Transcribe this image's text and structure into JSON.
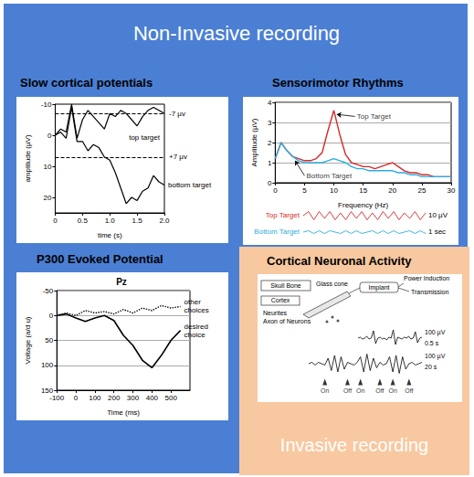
{
  "header": {
    "title": "Non-Invasive recording"
  },
  "footer": {
    "title": "Invasive recording"
  },
  "chart_data": [
    {
      "type": "line",
      "title": "Slow cortical potentials",
      "x_label": "time (s)",
      "y_label": "amplitude (µV)",
      "x": [
        0,
        0.1,
        0.2,
        0.3,
        0.4,
        0.5,
        0.6,
        0.7,
        0.8,
        0.9,
        1,
        1.1,
        1.2,
        1.3,
        1.4,
        1.5,
        1.6,
        1.7,
        1.8,
        1.9,
        2
      ],
      "series": [
        {
          "name": "top target",
          "color": "#000000",
          "line_style": "solid",
          "values": [
            0,
            -2,
            -1,
            -10,
            1,
            -5,
            -8,
            -6,
            -4,
            -2,
            -7,
            -6,
            -8,
            -7,
            -5,
            -3,
            -6,
            -8,
            -9,
            -8,
            -7
          ]
        },
        {
          "name": "bottom target",
          "color": "#000000",
          "line_style": "solid",
          "values": [
            0,
            -1,
            1,
            -9,
            2,
            2,
            5,
            3,
            4,
            7,
            8,
            12,
            17,
            22,
            20,
            21,
            18,
            17,
            13,
            15,
            16
          ]
        }
      ],
      "thresholds": [
        {
          "value": -7,
          "label": "-7 µv"
        },
        {
          "value": 7,
          "label": "+7 µv"
        }
      ],
      "xlim": [
        0,
        2
      ],
      "xticks": [
        0,
        0.5,
        {
          "value": 1,
          "label": "1.0"
        },
        1.5,
        {
          "value": 2,
          "label": "2.0"
        }
      ],
      "ylim": [
        25,
        -10
      ],
      "yticks": [
        -10,
        0,
        10,
        20
      ],
      "grid": false
    },
    {
      "type": "line",
      "title": "Sensorimotor Rhythms",
      "x_label": "Frequency (Hz)",
      "y_label": "Amplitude (µV)",
      "x": [
        0,
        1,
        2,
        3,
        4,
        5,
        6,
        7,
        8,
        9,
        10,
        11,
        12,
        13,
        14,
        15,
        16,
        17,
        18,
        19,
        20,
        21,
        22,
        23,
        24,
        25,
        26,
        27,
        28,
        29,
        30
      ],
      "series": [
        {
          "color": "#d42a2a",
          "values": [
            1.2,
            2.0,
            1.6,
            1.3,
            1.2,
            1.1,
            1.1,
            1.2,
            1.5,
            2.6,
            3.6,
            2.4,
            1.4,
            1.0,
            0.9,
            0.8,
            0.8,
            0.7,
            0.8,
            0.9,
            1.0,
            0.8,
            0.6,
            0.5,
            0.5,
            0.4,
            0.4,
            0.3,
            0.3,
            0.3,
            0.3
          ]
        },
        {
          "color": "#2aaee0",
          "values": [
            1.2,
            2.0,
            1.6,
            1.3,
            1.1,
            1.0,
            1.0,
            1.0,
            1.0,
            1.1,
            1.2,
            1.1,
            1.0,
            0.8,
            0.7,
            0.7,
            0.6,
            0.6,
            0.6,
            0.6,
            0.6,
            0.5,
            0.5,
            0.4,
            0.4,
            0.3,
            0.3,
            0.3,
            0.3,
            0.3,
            0.3
          ]
        }
      ],
      "annotations": [
        {
          "text": "Top Target",
          "x": 13.6,
          "y": 3.3,
          "arrow_to": [
            10.5,
            3.4
          ]
        },
        {
          "text": "Bottom Target",
          "x": 5,
          "y": 0.35,
          "arrow_to": [
            3.4,
            1.1
          ]
        }
      ],
      "xlim": [
        0,
        30
      ],
      "xticks": [
        0,
        5,
        10,
        15,
        20,
        25,
        30
      ],
      "ylim": [
        0,
        4
      ],
      "yticks": [
        0,
        1,
        2,
        3,
        4
      ],
      "grid": true,
      "traces": {
        "ylim": [
          -4,
          4
        ],
        "tick_labels": false,
        "scale_labels": [
          "10 µV",
          "1 sec"
        ],
        "series": [
          {
            "name": "Top Target",
            "color": "#d42a2a",
            "values": [
              0,
              3,
              -3,
              3,
              -2,
              3,
              -3,
              2,
              -3,
              3,
              -2,
              3,
              -3,
              2,
              -3,
              3,
              -2,
              3,
              -3,
              2,
              -2,
              3,
              -3,
              2
            ]
          },
          {
            "name": "Bottom Target",
            "color": "#2aaee0",
            "values": [
              0,
              1,
              -1,
              1,
              -1,
              1,
              0,
              -1,
              1,
              -1,
              1,
              -1,
              0,
              1,
              -1,
              1,
              -1,
              1,
              -1,
              0,
              1,
              -1,
              1,
              -1
            ]
          }
        ]
      }
    },
    {
      "type": "line",
      "title": "P300 Evoked Potential",
      "subtitle": "Pz",
      "x_label": "Time (ms)",
      "y_label": "Voltage (a/d u)",
      "x": [
        -100,
        -50,
        0,
        50,
        100,
        150,
        200,
        250,
        300,
        350,
        400,
        450,
        500,
        550
      ],
      "series": [
        {
          "name": "other choices",
          "color": "#000000",
          "line_style": "dotted",
          "values": [
            0,
            -5,
            0,
            -10,
            -5,
            -8,
            -3,
            -12,
            -5,
            -15,
            -10,
            -20,
            -15,
            -18
          ]
        },
        {
          "name": "desired choice",
          "color": "#000000",
          "line_style": "solid",
          "values": [
            0,
            -3,
            5,
            12,
            5,
            0,
            10,
            40,
            60,
            90,
            105,
            80,
            50,
            30
          ]
        }
      ],
      "xlim": [
        -100,
        600
      ],
      "xticks": [
        -100,
        0,
        100,
        200,
        300,
        400,
        500
      ],
      "ylim": [
        150,
        -50
      ],
      "yticks": [
        -50,
        0,
        50,
        100,
        150
      ],
      "grid": true
    },
    {
      "type": "line",
      "title": "Cortical Neuronal Activity",
      "diagram_labels": [
        "Skull Bone",
        "Glass cone",
        "Implant",
        "Power Induction",
        "Transmission",
        "Cortex",
        "Neurites",
        "Axon of Neurons"
      ],
      "tick_labels": false,
      "traces": [
        {
          "color": "#000000",
          "ylim": [
            -10,
            10
          ],
          "scale_labels": [
            "100 µV",
            "0.5 s"
          ],
          "values": [
            0,
            1,
            -1,
            0,
            2,
            -1,
            0,
            8,
            -6,
            0,
            1,
            -1,
            0,
            -2,
            1,
            0,
            9,
            -7,
            1,
            0,
            -1,
            1,
            0,
            2,
            -1,
            0,
            7,
            -5,
            0,
            1
          ]
        },
        {
          "color": "#000000",
          "ylim": [
            -8,
            8
          ],
          "scale_labels": [
            "100 µV",
            "20 s"
          ],
          "values": [
            0,
            1,
            -1,
            1,
            0,
            -1,
            4,
            -5,
            6,
            -6,
            5,
            -4,
            1,
            0,
            -1,
            1,
            5,
            -6,
            7,
            -5,
            4,
            -3,
            1,
            -1,
            0,
            5,
            -6,
            6,
            -7,
            5,
            -4,
            0,
            1,
            -1,
            0,
            1
          ],
          "events": [
            {
              "label": "On",
              "position": 5
            },
            {
              "label": "Off",
              "position": 12
            },
            {
              "label": "On",
              "position": 16
            },
            {
              "label": "Off",
              "position": 22
            },
            {
              "label": "On",
              "position": 26
            },
            {
              "label": "Off",
              "position": 31
            }
          ]
        }
      ]
    }
  ]
}
